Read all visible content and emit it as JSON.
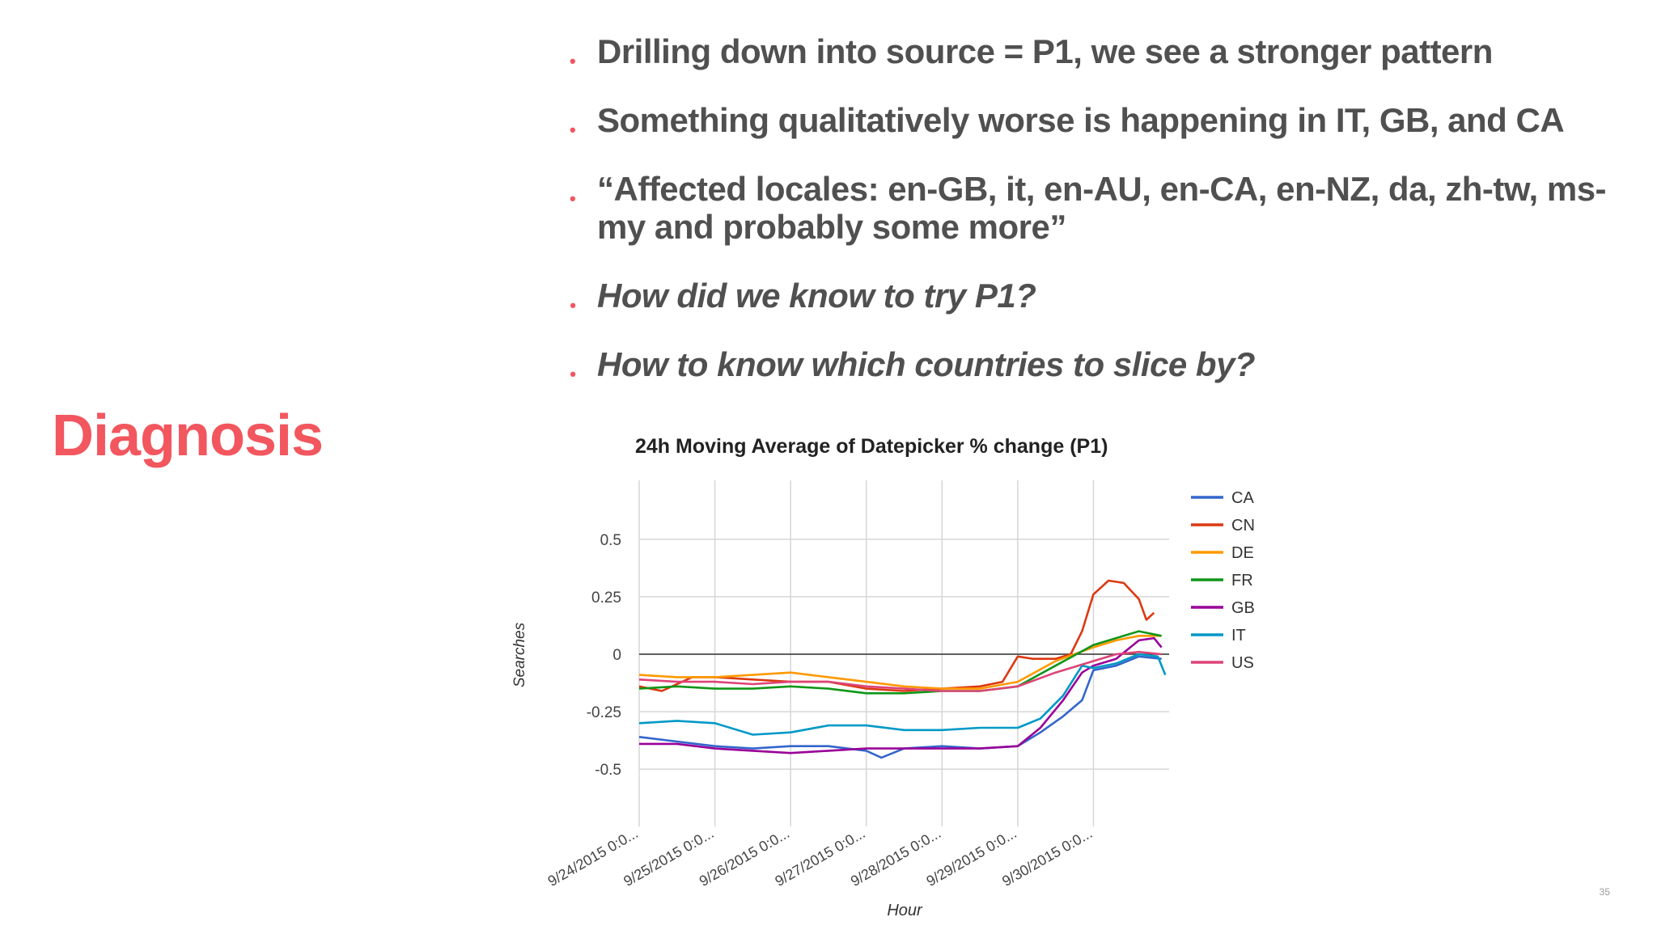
{
  "slide": {
    "title": "Diagnosis",
    "page_number": "35",
    "accent_color": "#f2565e",
    "bullets": [
      {
        "text": "Drilling down into source = P1, we see a stronger pattern",
        "italic": false
      },
      {
        "text": "Something qualitatively worse is happening in IT, GB, and CA",
        "italic": false
      },
      {
        "text": "“Affected locales: en-GB, it, en-AU, en-CA, en-NZ, da, zh-tw, ms-my and probably some more”",
        "italic": false
      },
      {
        "text": "How did we know to try P1?",
        "italic": true
      },
      {
        "text": "How to know which countries to slice by?",
        "italic": true
      }
    ]
  },
  "chart_data": {
    "type": "line",
    "title": "24h Moving Average of Datepicker % change (P1)",
    "xlabel": "Hour",
    "ylabel": "Searches",
    "ylim": [
      -0.7,
      0.7
    ],
    "yticks": [
      0.5,
      0.25,
      0,
      -0.25,
      -0.5
    ],
    "ytick_labels": [
      "0.5",
      "0.25",
      "0",
      "-0.25",
      "-0.5"
    ],
    "xlim": [
      0,
      7
    ],
    "xticks": [
      0,
      1,
      2,
      3,
      4,
      5,
      6
    ],
    "xtick_labels": [
      "9/24/2015 0:0...",
      "9/25/2015 0:0...",
      "9/26/2015 0:0...",
      "9/27/2015 0:0...",
      "9/28/2015 0:0...",
      "9/29/2015 0:0...",
      "9/30/2015 0:0..."
    ],
    "grid": true,
    "legend_position": "right",
    "series": [
      {
        "name": "CA",
        "color": "#3366cc",
        "x": [
          0,
          0.5,
          1,
          1.5,
          2,
          2.5,
          3,
          3.2,
          3.5,
          4,
          4.5,
          5,
          5.3,
          5.6,
          5.85,
          6,
          6.3,
          6.6,
          6.9
        ],
        "y": [
          -0.36,
          -0.38,
          -0.4,
          -0.41,
          -0.4,
          -0.4,
          -0.42,
          -0.45,
          -0.41,
          -0.4,
          -0.41,
          -0.4,
          -0.34,
          -0.27,
          -0.2,
          -0.07,
          -0.05,
          -0.01,
          -0.02
        ]
      },
      {
        "name": "CN",
        "color": "#dc3912",
        "x": [
          0,
          0.3,
          0.7,
          1,
          1.5,
          2,
          2.5,
          3,
          3.5,
          4,
          4.5,
          4.8,
          5.0,
          5.2,
          5.5,
          5.7,
          5.85,
          6.0,
          6.2,
          6.4,
          6.6,
          6.7,
          6.8
        ],
        "y": [
          -0.14,
          -0.16,
          -0.1,
          -0.1,
          -0.11,
          -0.12,
          -0.12,
          -0.15,
          -0.16,
          -0.15,
          -0.14,
          -0.12,
          -0.01,
          -0.02,
          -0.02,
          0.0,
          0.1,
          0.26,
          0.32,
          0.31,
          0.24,
          0.15,
          0.18
        ]
      },
      {
        "name": "DE",
        "color": "#ff9900",
        "x": [
          0,
          0.5,
          1,
          1.5,
          2,
          2.5,
          3,
          3.5,
          4,
          4.5,
          5,
          5.5,
          6,
          6.3,
          6.6,
          6.9
        ],
        "y": [
          -0.09,
          -0.1,
          -0.1,
          -0.09,
          -0.08,
          -0.1,
          -0.12,
          -0.14,
          -0.15,
          -0.15,
          -0.12,
          -0.03,
          0.03,
          0.06,
          0.08,
          0.08
        ]
      },
      {
        "name": "FR",
        "color": "#109618",
        "x": [
          0,
          0.5,
          1,
          1.5,
          2,
          2.5,
          3,
          3.5,
          4,
          4.5,
          5,
          5.5,
          6,
          6.3,
          6.6,
          6.9
        ],
        "y": [
          -0.15,
          -0.14,
          -0.15,
          -0.15,
          -0.14,
          -0.15,
          -0.17,
          -0.17,
          -0.16,
          -0.16,
          -0.14,
          -0.05,
          0.04,
          0.07,
          0.1,
          0.08
        ]
      },
      {
        "name": "GB",
        "color": "#990099",
        "x": [
          0,
          0.5,
          1,
          1.5,
          2,
          2.5,
          3,
          3.5,
          4,
          4.5,
          5,
          5.3,
          5.6,
          5.85,
          6,
          6.3,
          6.6,
          6.8,
          6.9
        ],
        "y": [
          -0.39,
          -0.39,
          -0.41,
          -0.42,
          -0.43,
          -0.42,
          -0.41,
          -0.41,
          -0.41,
          -0.41,
          -0.4,
          -0.32,
          -0.2,
          -0.08,
          -0.05,
          -0.02,
          0.06,
          0.07,
          0.03
        ]
      },
      {
        "name": "IT",
        "color": "#0099c6",
        "x": [
          0,
          0.5,
          1,
          1.5,
          2,
          2.5,
          3,
          3.5,
          4,
          4.5,
          5,
          5.3,
          5.6,
          5.85,
          6,
          6.3,
          6.6,
          6.85,
          6.95
        ],
        "y": [
          -0.3,
          -0.29,
          -0.3,
          -0.35,
          -0.34,
          -0.31,
          -0.31,
          -0.33,
          -0.33,
          -0.32,
          -0.32,
          -0.28,
          -0.18,
          -0.05,
          -0.06,
          -0.04,
          0.0,
          -0.01,
          -0.09
        ]
      },
      {
        "name": "US",
        "color": "#dd4477",
        "x": [
          0,
          0.5,
          1,
          1.5,
          2,
          2.5,
          3,
          3.5,
          4,
          4.5,
          5,
          5.5,
          6,
          6.3,
          6.6,
          6.9
        ],
        "y": [
          -0.11,
          -0.12,
          -0.12,
          -0.13,
          -0.12,
          -0.12,
          -0.14,
          -0.15,
          -0.16,
          -0.16,
          -0.14,
          -0.08,
          -0.03,
          0.0,
          0.01,
          0.0
        ]
      }
    ]
  }
}
